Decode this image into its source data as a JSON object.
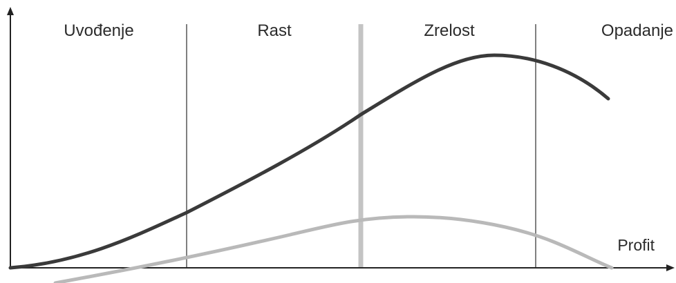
{
  "stages": [
    {
      "name": "Uvođenje"
    },
    {
      "name": "Rast"
    },
    {
      "name": "Zrelost"
    },
    {
      "name": "Opadanje"
    }
  ],
  "series": {
    "sales": {
      "color": "#3a3a3a"
    },
    "profit": {
      "label": "Profit",
      "color": "#b9b9b9"
    }
  },
  "colors": {
    "axis": "#222222",
    "stage_divider": "#555555",
    "highlight_divider": "#c4c4c4"
  }
}
